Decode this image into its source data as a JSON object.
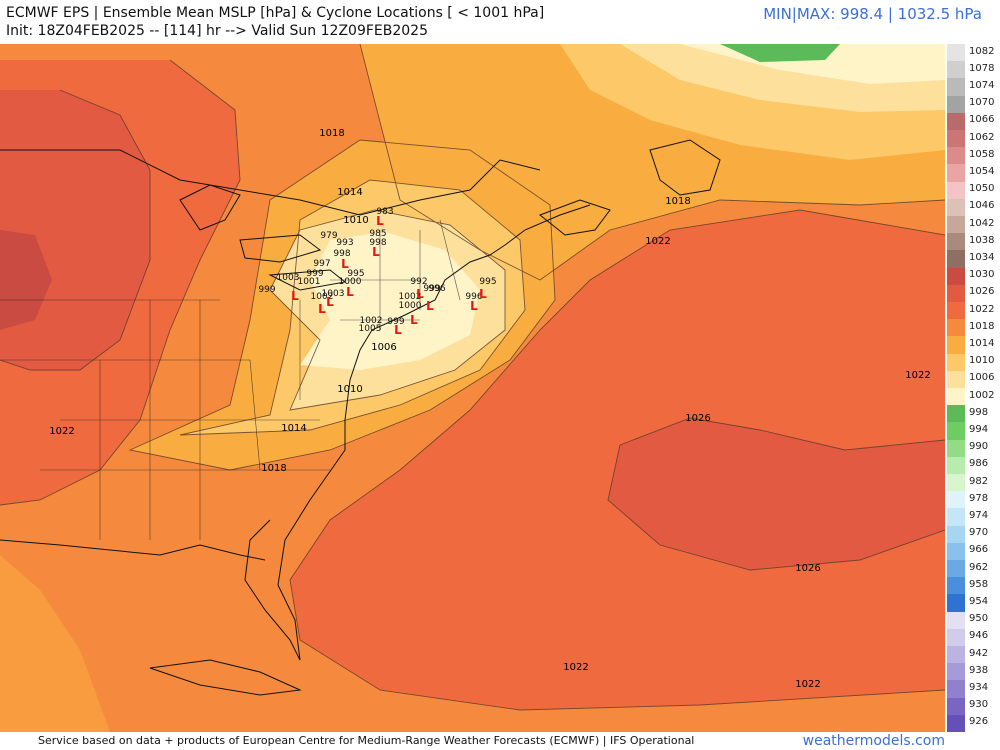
{
  "header": {
    "title": "ECMWF EPS | Ensemble Mean MSLP [hPa] & Cyclone Locations [ < 1001 hPa]",
    "subtitle": "Init: 18Z04FEB2025 -- [114] hr --> Valid Sun 12Z09FEB2025",
    "minmax": "MIN|MAX: 998.4 | 1032.5 hPa"
  },
  "footer": {
    "credit": "Service based on data + products of European Centre for Medium-Range Weather Forecasts (ECMWF) | IFS Operational",
    "brand": "weathermodels.com"
  },
  "colorbar": {
    "ticks": [
      "1082",
      "1078",
      "1074",
      "1070",
      "1066",
      "1062",
      "1058",
      "1054",
      "1050",
      "1046",
      "1042",
      "1038",
      "1034",
      "1030",
      "1026",
      "1022",
      "1018",
      "1014",
      "1010",
      "1006",
      "1002",
      "998",
      "994",
      "990",
      "986",
      "982",
      "978",
      "974",
      "970",
      "966",
      "962",
      "958",
      "954",
      "950",
      "946",
      "942",
      "938",
      "934",
      "930",
      "926"
    ],
    "colors": [
      "#e4e4e4",
      "#cfcfcf",
      "#bababa",
      "#a3a3a3",
      "#b96a6a",
      "#cc7575",
      "#dc8b8b",
      "#eaa4a4",
      "#f4c3c3",
      "#dcc1b6",
      "#c7a79a",
      "#ab8a7e",
      "#8f6e63",
      "#c94b42",
      "#e35a43",
      "#f06a3f",
      "#f58a3e",
      "#f9ac3f",
      "#fcc868",
      "#fde09c",
      "#fff3c8",
      "#5cba58",
      "#6fcc63",
      "#93dc86",
      "#b8ecac",
      "#d8f5cd",
      "#dff3fb",
      "#c4e6f7",
      "#a7d6f2",
      "#89c1ec",
      "#6aa9e4",
      "#4a8fdc",
      "#2f73d2",
      "#e4e0f3",
      "#d2ccec",
      "#bcb3e2",
      "#a69ad8",
      "#9080cd",
      "#7a66c2",
      "#6450b6"
    ]
  },
  "map": {
    "contour_labels": [
      {
        "text": "1022",
        "color": "#2a1a1a"
      },
      {
        "text": "1022",
        "color": "#2a1a1a"
      },
      {
        "text": "1022",
        "color": "#2a1a1a"
      },
      {
        "text": "1022",
        "color": "#2a1a1a"
      },
      {
        "text": "1022",
        "color": "#2a1a1a"
      },
      {
        "text": "1026",
        "color": "#2a1a1a"
      },
      {
        "text": "1026",
        "color": "#2a1a1a"
      },
      {
        "text": "1018",
        "color": "#2a1a1a"
      },
      {
        "text": "1018",
        "color": "#2a1a1a"
      },
      {
        "text": "1018",
        "color": "#2a1a1a"
      },
      {
        "text": "1014",
        "color": "#2a1a1a"
      },
      {
        "text": "1014",
        "color": "#2a1a1a"
      },
      {
        "text": "1010",
        "color": "#2a1a1a"
      },
      {
        "text": "1010",
        "color": "#2a1a1a"
      },
      {
        "text": "1006",
        "color": "#2a1a1a"
      }
    ],
    "cyclones": [
      {
        "text": "983"
      },
      {
        "text": "979"
      },
      {
        "text": "985"
      },
      {
        "text": "993"
      },
      {
        "text": "998"
      },
      {
        "text": "998"
      },
      {
        "text": "997"
      },
      {
        "text": "999"
      },
      {
        "text": "1003"
      },
      {
        "text": "1001"
      },
      {
        "text": "995"
      },
      {
        "text": "1000"
      },
      {
        "text": "999"
      },
      {
        "text": "1003"
      },
      {
        "text": "1002"
      },
      {
        "text": "992"
      },
      {
        "text": "999"
      },
      {
        "text": "996"
      },
      {
        "text": "1002"
      },
      {
        "text": "1000"
      },
      {
        "text": "1005"
      },
      {
        "text": "995"
      },
      {
        "text": "996"
      },
      {
        "text": "999"
      },
      {
        "text": "1002"
      }
    ]
  }
}
